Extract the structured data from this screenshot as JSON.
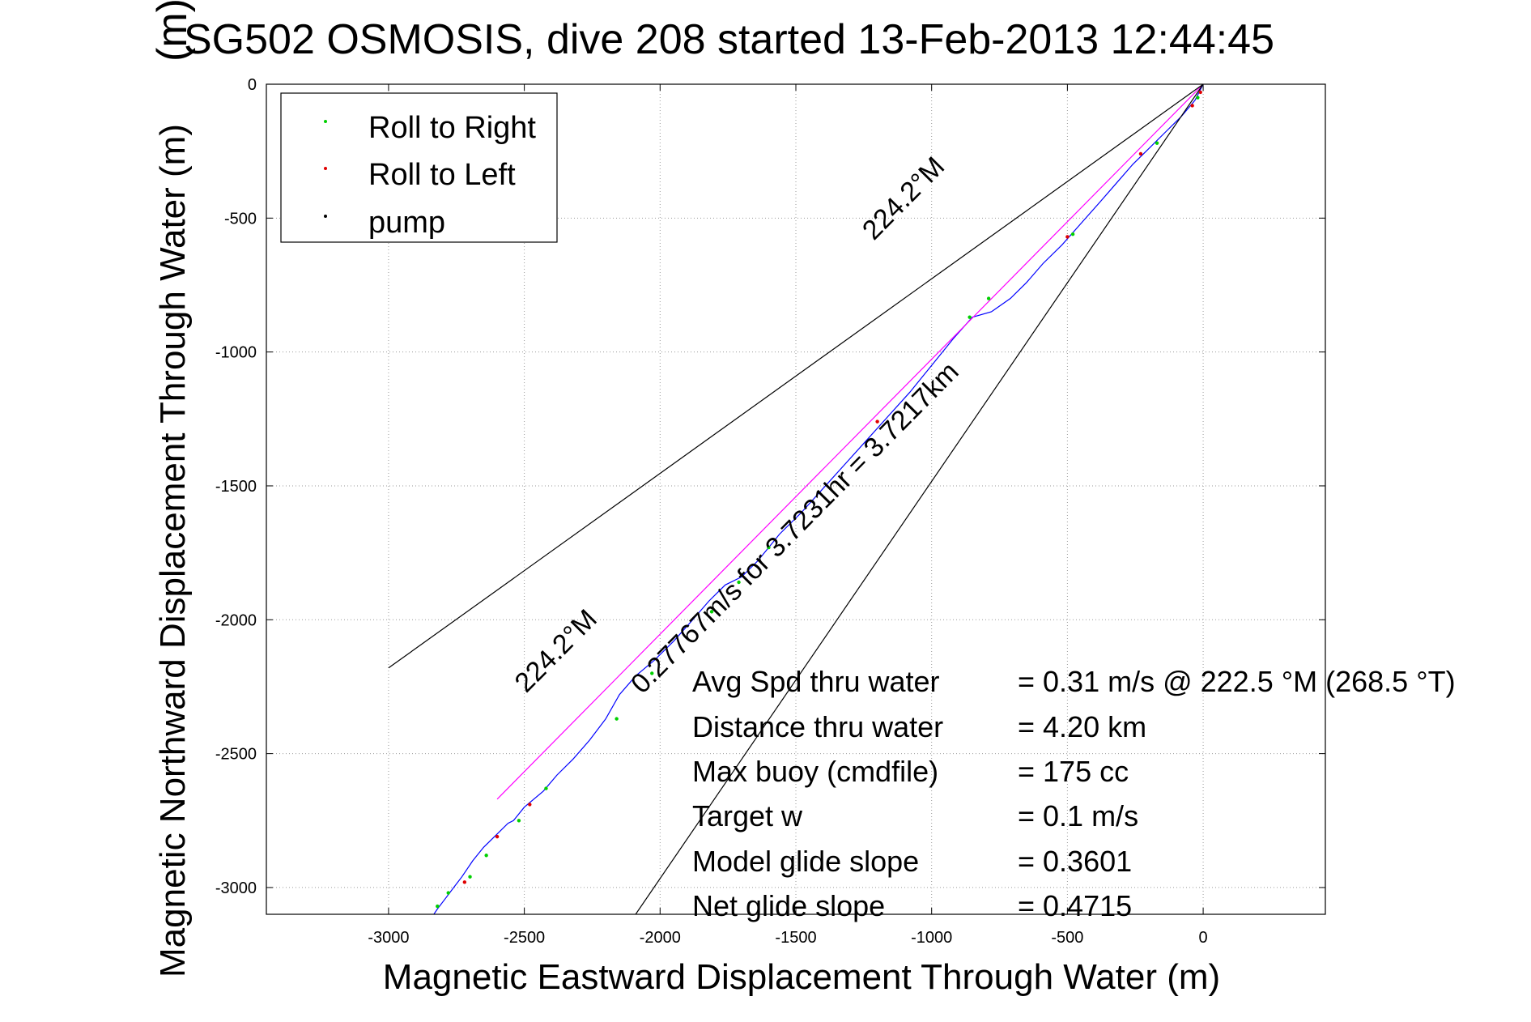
{
  "chart_data": {
    "type": "line",
    "title": "SG502 OSMOSIS, dive 208 started 13-Feb-2013 12:44:45",
    "title_overlay": "(m)",
    "xlabel": "Magnetic Eastward Displacement Through Water (m)",
    "ylabel": "Magnetic Northward Displacement Through Water (m)",
    "xlim": [
      -3450,
      450
    ],
    "ylim": [
      -3100,
      0
    ],
    "x_ticks": [
      -3000,
      -2500,
      -2000,
      -1500,
      -1000,
      -500,
      0
    ],
    "y_ticks": [
      0,
      -500,
      -1000,
      -1500,
      -2000,
      -2500,
      -3000
    ],
    "grid": true,
    "legend_position": "top-left",
    "legend": [
      {
        "label": "Roll to Right",
        "color": "#00d000"
      },
      {
        "label": "Roll to Left",
        "color": "#e00000"
      },
      {
        "label": "pump",
        "color": "#000000"
      }
    ],
    "series": [
      {
        "kind": "track",
        "color": "#0000ff",
        "x": [
          0,
          -30,
          -80,
          -140,
          -200,
          -260,
          -320,
          -380,
          -450,
          -520,
          -590,
          -650,
          -710,
          -780,
          -850,
          -920,
          -1000,
          -1080,
          -1160,
          -1240,
          -1320,
          -1400,
          -1480,
          -1560,
          -1600,
          -1640,
          -1700,
          -1760,
          -1820,
          -1880,
          -1950,
          -2020,
          -2090,
          -2150,
          -2200,
          -2260,
          -2320,
          -2380,
          -2430,
          -2500,
          -2540,
          -2560,
          -2600,
          -2650,
          -2690,
          -2730,
          -2760,
          -2790,
          -2820,
          -2840
        ],
        "y": [
          0,
          -60,
          -120,
          -180,
          -240,
          -300,
          -370,
          -440,
          -520,
          -600,
          -670,
          -740,
          -800,
          -850,
          -870,
          -950,
          -1050,
          -1150,
          -1240,
          -1330,
          -1420,
          -1510,
          -1600,
          -1680,
          -1730,
          -1780,
          -1840,
          -1870,
          -1930,
          -2000,
          -2080,
          -2150,
          -2210,
          -2280,
          -2370,
          -2450,
          -2520,
          -2580,
          -2640,
          -2700,
          -2750,
          -2760,
          -2800,
          -2850,
          -2900,
          -2960,
          -3000,
          -3040,
          -3080,
          -3110
        ]
      },
      {
        "kind": "heading",
        "color": "#ff00ff",
        "x": [
          0,
          -2600
        ],
        "y": [
          0,
          -2670
        ]
      },
      {
        "kind": "cone",
        "color": "#000000",
        "x": [
          0,
          -3000
        ],
        "y": [
          0,
          -2180
        ]
      },
      {
        "kind": "cone",
        "color": "#000000",
        "x": [
          0,
          -2090
        ],
        "y": [
          0,
          -3100
        ]
      }
    ],
    "markers": {
      "roll_right": {
        "color": "#00d000",
        "x": [
          -20,
          -170,
          -480,
          -790,
          -860,
          -1600,
          -1710,
          -1810,
          -2030,
          -2160,
          -2420,
          -2520,
          -2640,
          -2700,
          -2780,
          -2820
        ],
        "y": [
          -50,
          -220,
          -560,
          -800,
          -870,
          -1730,
          -1860,
          -1970,
          -2200,
          -2370,
          -2630,
          -2750,
          -2880,
          -2960,
          -3020,
          -3070
        ]
      },
      "roll_left": {
        "color": "#e00000",
        "x": [
          -10,
          -40,
          -230,
          -500,
          -1200,
          -2480,
          -2600,
          -2720
        ],
        "y": [
          -30,
          -80,
          -260,
          -570,
          -1260,
          -2690,
          -2810,
          -2980
        ]
      }
    },
    "rotated_labels": [
      {
        "text": "224.2°M",
        "x": -1080,
        "y": -450
      },
      {
        "text": "0.27767m/s for 3.7231hr = 3.7217km",
        "x": -1480,
        "y": -1680
      },
      {
        "text": "224.2°M",
        "x": -2360,
        "y": -2140
      }
    ],
    "annotations": [
      {
        "label": "Avg Spd thru water",
        "value": "=  0.31 m/s @ 222.5 °M (268.5 °T)"
      },
      {
        "label": "Distance thru water",
        "value": "=  4.20 km"
      },
      {
        "label": "Max buoy (cmdfile)",
        "value": "= 175 cc"
      },
      {
        "label": "Target w",
        "value": "= 0.1 m/s"
      },
      {
        "label": "Model glide slope",
        "value": "= 0.3601"
      },
      {
        "label": "Net glide slope",
        "value": "= 0.4715"
      }
    ]
  }
}
